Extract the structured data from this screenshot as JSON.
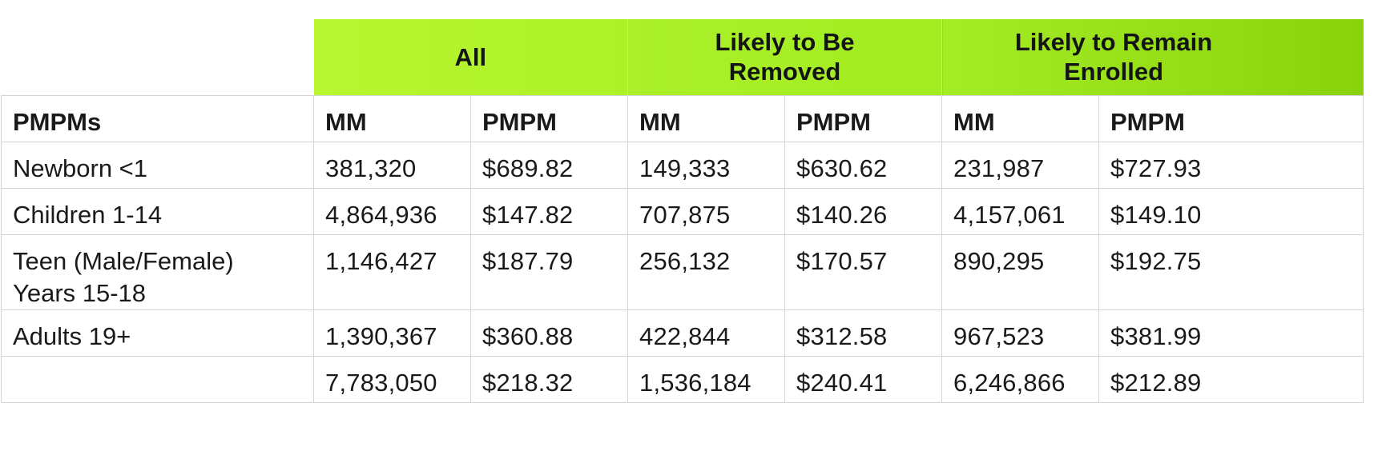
{
  "groups": {
    "all": "All",
    "likely_removed": "Likely to Be Removed",
    "likely_remain": "Likely to Remain Enrolled"
  },
  "subheaders": {
    "row_label": "PMPMs",
    "all_mm": "MM",
    "all_pmpm": "PMPM",
    "removed_mm": "MM",
    "removed_pmpm": "PMPM",
    "remain_mm": "MM",
    "remain_pmpm": "PMPM"
  },
  "rows": [
    {
      "label_line1": "Newborn <1",
      "label_line2": "",
      "all_mm": "381,320",
      "all_pmpm": "$689.82",
      "removed_mm": "149,333",
      "removed_pmpm": "$630.62",
      "remain_mm": "231,987",
      "remain_pmpm": "$727.93"
    },
    {
      "label_line1": "Children 1-14",
      "label_line2": "",
      "all_mm": "4,864,936",
      "all_pmpm": "$147.82",
      "removed_mm": "707,875",
      "removed_pmpm": "$140.26",
      "remain_mm": "4,157,061",
      "remain_pmpm": "$149.10"
    },
    {
      "label_line1": "Teen (Male/Female)",
      "label_line2": "Years 15-18",
      "all_mm": "1,146,427",
      "all_pmpm": "$187.79",
      "removed_mm": "256,132",
      "removed_pmpm": "$170.57",
      "remain_mm": "890,295",
      "remain_pmpm": "$192.75"
    },
    {
      "label_line1": "Adults 19+",
      "label_line2": "",
      "all_mm": "1,390,367",
      "all_pmpm": "$360.88",
      "removed_mm": "422,844",
      "removed_pmpm": "$312.58",
      "remain_mm": "967,523",
      "remain_pmpm": "$381.99"
    },
    {
      "label_line1": "",
      "label_line2": "",
      "all_mm": "7,783,050",
      "all_pmpm": "$218.32",
      "removed_mm": "1,536,184",
      "removed_pmpm": "$240.41",
      "remain_mm": "6,246,866",
      "remain_pmpm": "$212.89"
    }
  ]
}
